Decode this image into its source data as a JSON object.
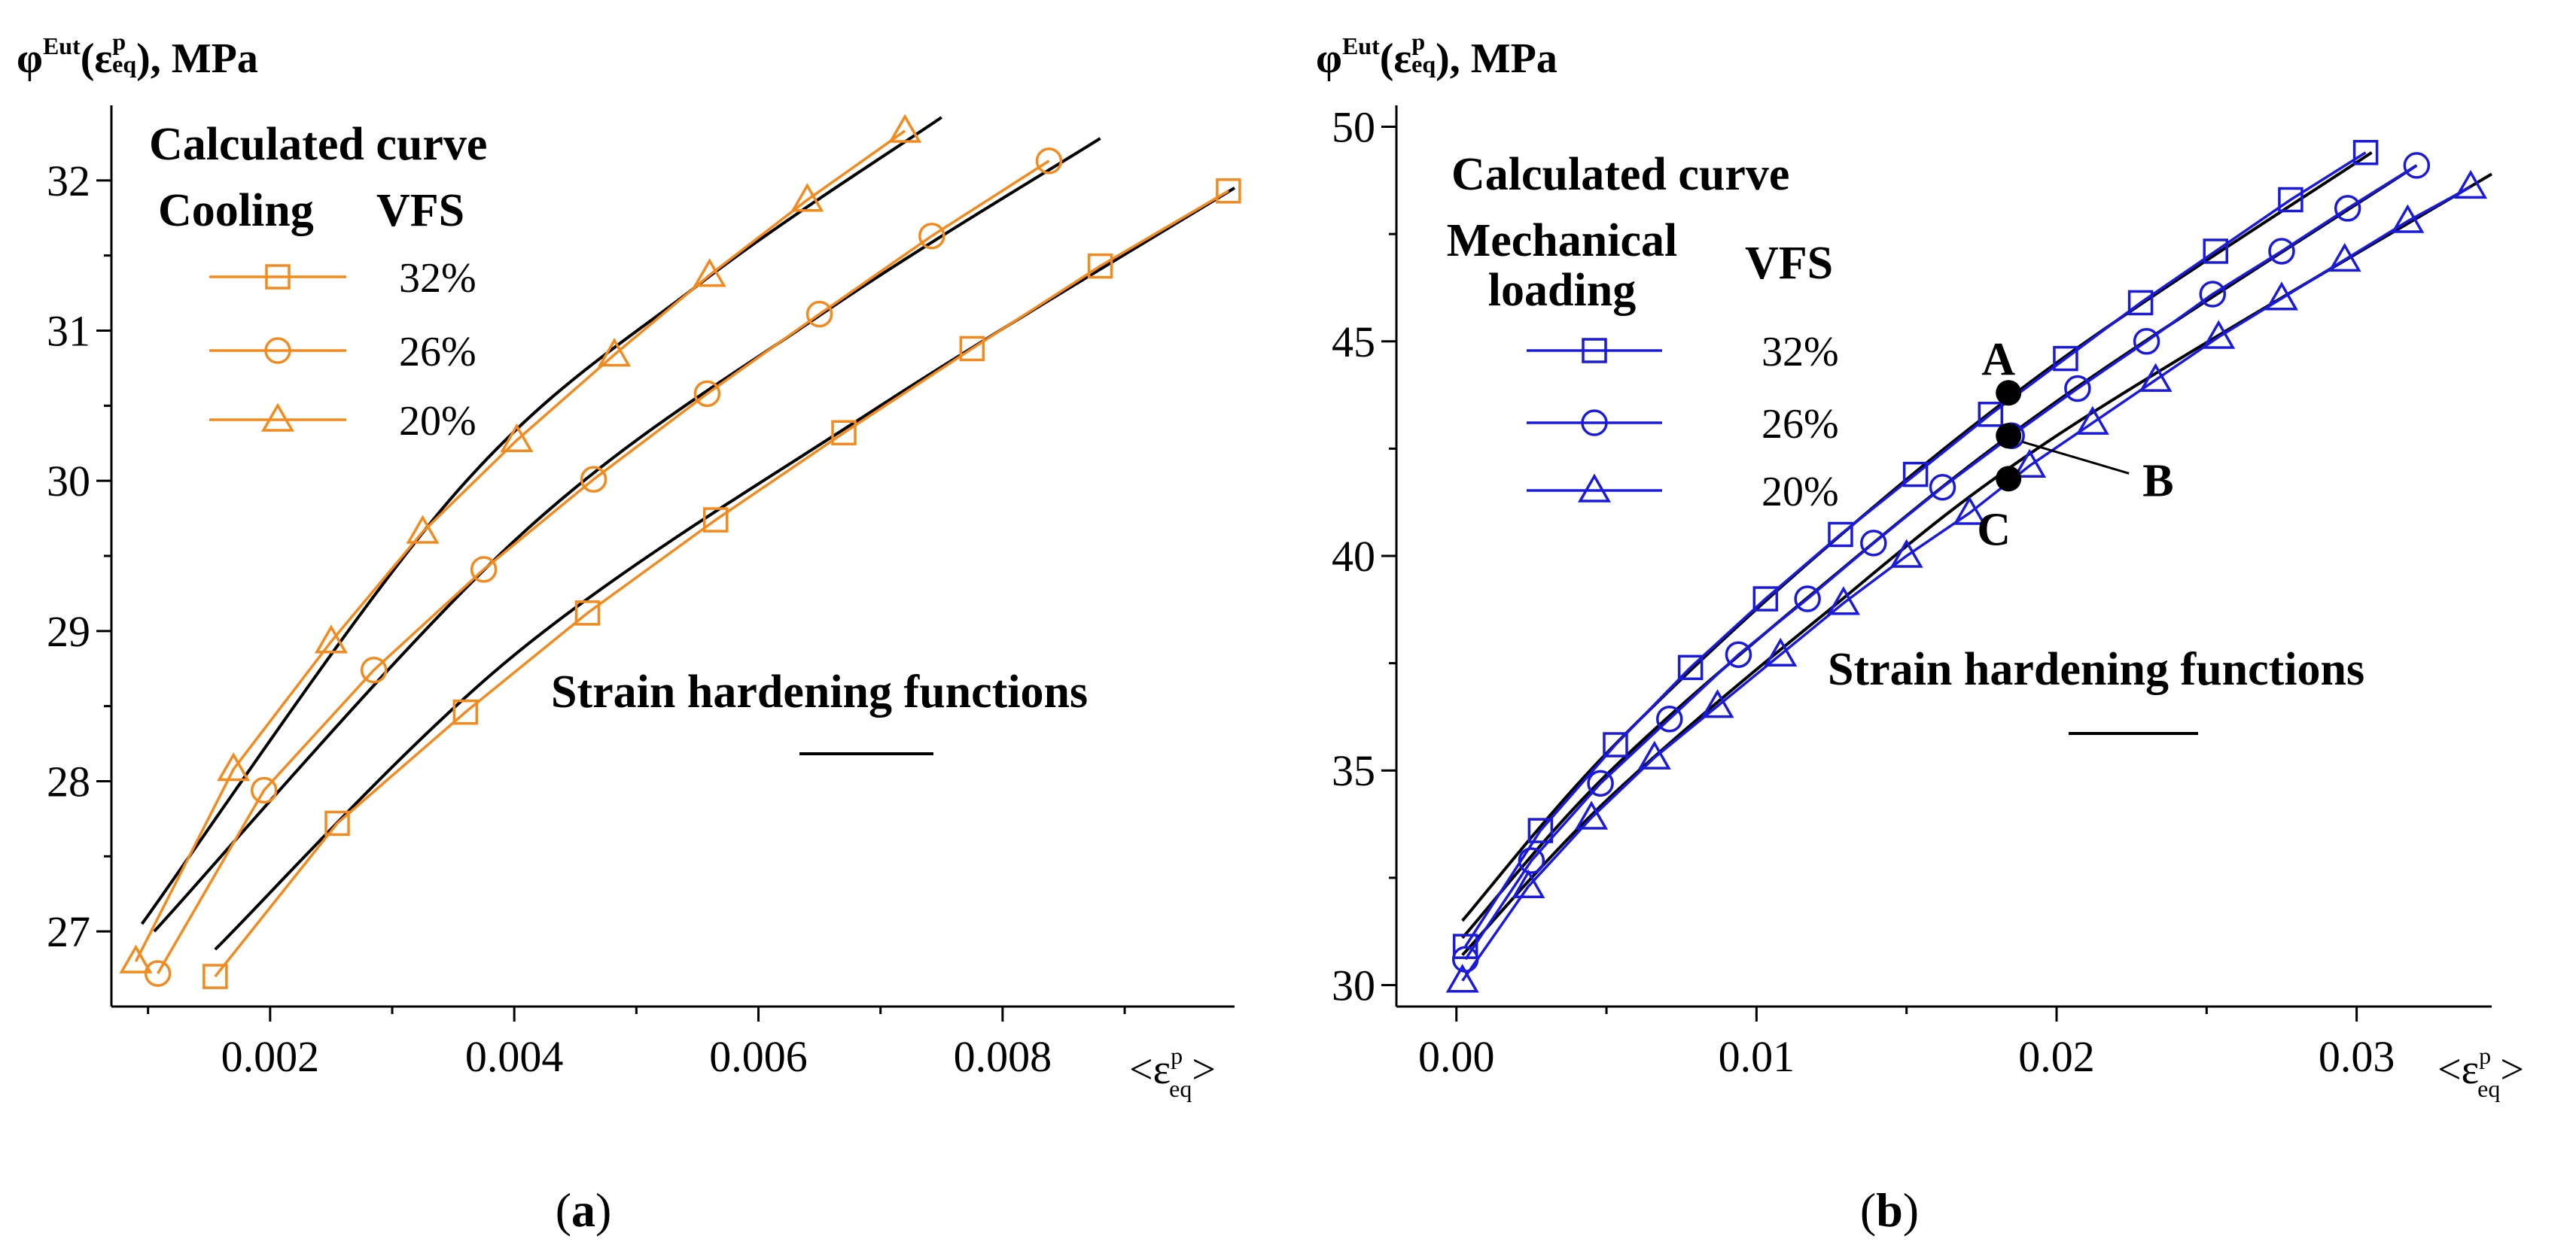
{
  "chart_data": [
    {
      "type": "line",
      "panel_label": "(a)",
      "ylabel_html": "φ^Eut(ε^p_eq), MPa",
      "ylabel": {
        "main": "φ",
        "sup1": "Eut",
        "paren_open": "(ε",
        "sup2": "p",
        "sub2": "eq",
        "rest": "), MPa"
      },
      "xlabel": {
        "open": "<ε",
        "sup": "p",
        "sub": "eq",
        "close": ">"
      },
      "xlim": [
        0.0007,
        0.0099
      ],
      "ylim": [
        26.5,
        32.5
      ],
      "xticks": [
        0.002,
        0.004,
        0.006,
        0.008
      ],
      "xtick_labels": [
        "0.002",
        "0.004",
        "0.006",
        "0.008"
      ],
      "yticks": [
        27,
        28,
        29,
        30,
        31,
        32
      ],
      "ytick_labels": [
        "27",
        "28",
        "29",
        "30",
        "31",
        "32"
      ],
      "colored_color": "#F28A1E",
      "fit_color": "#000000",
      "legend": {
        "title_line1": "Calculated curve",
        "group_label": "Cooling",
        "group_label_lines": [
          "Cooling"
        ],
        "vfs_label": "VFS",
        "entries": [
          "32%",
          "26%",
          "20%"
        ]
      },
      "annotation": "Strain hardening functions",
      "points": [],
      "series": [
        {
          "name": "32%",
          "marker": "square",
          "x": [
            0.00155,
            0.00255,
            0.0036,
            0.0046,
            0.00565,
            0.0067,
            0.00775,
            0.0088,
            0.00985
          ],
          "y": [
            26.7,
            27.72,
            28.46,
            29.12,
            29.74,
            30.32,
            30.88,
            31.43,
            31.93
          ]
        },
        {
          "name": "26%",
          "marker": "circle",
          "x": [
            0.00108,
            0.00195,
            0.00285,
            0.00375,
            0.00465,
            0.00558,
            0.0065,
            0.00742,
            0.00838
          ],
          "y": [
            26.72,
            27.94,
            28.74,
            29.41,
            30.01,
            30.58,
            31.11,
            31.63,
            32.13
          ]
        },
        {
          "name": "20%",
          "marker": "triangle",
          "x": [
            0.0009,
            0.0017,
            0.0025,
            0.00325,
            0.00402,
            0.00482,
            0.0056,
            0.0064,
            0.0072
          ],
          "y": [
            26.8,
            28.08,
            28.93,
            29.66,
            30.27,
            30.84,
            31.37,
            31.87,
            32.33
          ]
        }
      ],
      "fit_curves": [
        {
          "x": [
            0.00155,
            0.004,
            0.007,
            0.0099
          ],
          "y": [
            26.88,
            28.84,
            30.5,
            31.95
          ]
        },
        {
          "x": [
            0.00105,
            0.004,
            0.0065,
            0.0088
          ],
          "y": [
            27.0,
            29.6,
            31.1,
            32.28
          ]
        },
        {
          "x": [
            0.00095,
            0.0035,
            0.0055,
            0.0075
          ],
          "y": [
            27.05,
            29.9,
            31.3,
            32.42
          ]
        }
      ]
    },
    {
      "type": "line",
      "panel_label": "(b)",
      "ylabel": {
        "main": "φ",
        "sup1": "Eut",
        "paren_open": "(ε",
        "sup2": "p",
        "sub2": "eq",
        "rest": "), MPa"
      },
      "xlabel": {
        "open": "<ε",
        "sup": "p",
        "sub": "eq",
        "close": ">"
      },
      "xlim": [
        -0.002,
        0.0345
      ],
      "ylim": [
        29.5,
        50.5
      ],
      "xticks": [
        0.0,
        0.01,
        0.02,
        0.03
      ],
      "xtick_labels": [
        "0.00",
        "0.01",
        "0.02",
        "0.03"
      ],
      "yticks": [
        30,
        35,
        40,
        45,
        50
      ],
      "ytick_labels": [
        "30",
        "35",
        "40",
        "45",
        "50"
      ],
      "colored_color": "#1A1ADC",
      "fit_color": "#000000",
      "legend": {
        "title_line1": "Calculated curve",
        "group_label": "Mechanical loading",
        "group_label_lines": [
          "Mechanical",
          "loading"
        ],
        "vfs_label": "VFS",
        "entries": [
          "32%",
          "26%",
          "20%"
        ]
      },
      "annotation": "Strain hardening functions",
      "points": [
        {
          "label": "A",
          "x": 0.0184,
          "y": 43.8
        },
        {
          "label": "B",
          "x": 0.0184,
          "y": 42.8
        },
        {
          "label": "C",
          "x": 0.0184,
          "y": 41.8
        }
      ],
      "series": [
        {
          "name": "32%",
          "marker": "square",
          "x": [
            0.0003,
            0.0028,
            0.0053,
            0.0078,
            0.0103,
            0.0128,
            0.0153,
            0.0178,
            0.0203,
            0.0228,
            0.0253,
            0.0278,
            0.0303
          ],
          "y": [
            30.9,
            33.6,
            35.6,
            37.4,
            39.0,
            40.5,
            41.9,
            43.3,
            44.6,
            45.9,
            47.1,
            48.3,
            49.4
          ]
        },
        {
          "name": "26%",
          "marker": "circle",
          "x": [
            0.0003,
            0.0025,
            0.0048,
            0.0071,
            0.0094,
            0.0117,
            0.0139,
            0.0162,
            0.0185,
            0.0207,
            0.023,
            0.0252,
            0.0275,
            0.0297,
            0.032
          ],
          "y": [
            30.6,
            32.9,
            34.7,
            36.2,
            37.7,
            39.0,
            40.3,
            41.6,
            42.8,
            43.9,
            45.0,
            46.1,
            47.1,
            48.1,
            49.1
          ]
        },
        {
          "name": "20%",
          "marker": "triangle",
          "x": [
            0.0002,
            0.0024,
            0.0045,
            0.0066,
            0.0087,
            0.0108,
            0.0129,
            0.015,
            0.0171,
            0.0191,
            0.0212,
            0.0233,
            0.0254,
            0.0275,
            0.0296,
            0.0317,
            0.0338
          ],
          "y": [
            30.1,
            32.3,
            33.9,
            35.3,
            36.5,
            37.7,
            38.9,
            40.0,
            41.0,
            42.1,
            43.1,
            44.1,
            45.1,
            46.0,
            46.9,
            47.8,
            48.6
          ]
        }
      ],
      "fit_curves": [
        {
          "x": [
            0.0002,
            0.005,
            0.012,
            0.02,
            0.0305
          ],
          "y": [
            31.5,
            35.4,
            40.0,
            44.5,
            49.4
          ]
        },
        {
          "x": [
            0.0002,
            0.005,
            0.012,
            0.02,
            0.032
          ],
          "y": [
            31.1,
            34.9,
            39.2,
            43.6,
            49.1
          ]
        },
        {
          "x": [
            0.0002,
            0.005,
            0.012,
            0.02,
            0.0345
          ],
          "y": [
            30.7,
            34.3,
            38.5,
            42.8,
            48.9
          ]
        }
      ]
    }
  ]
}
